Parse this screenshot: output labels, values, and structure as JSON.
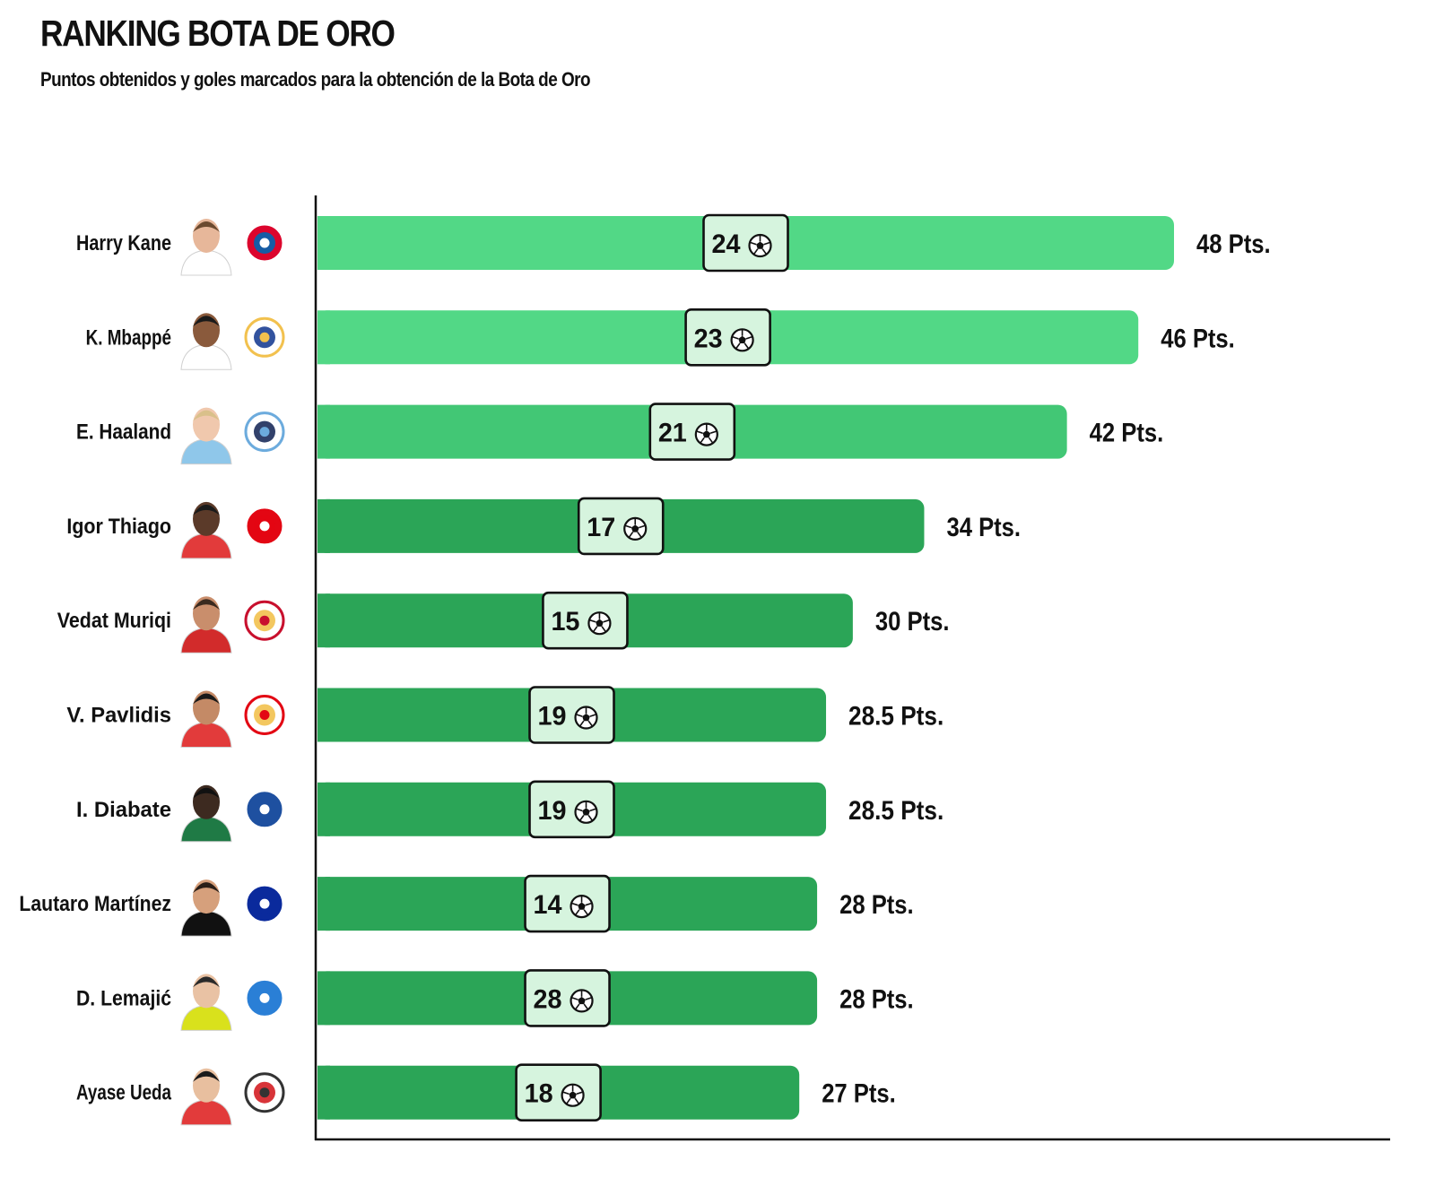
{
  "header": {
    "title": "RANKING BOTA DE ORO",
    "subtitle": "Puntos obtenidos y goles marcados para la obtención de la Bota de Oro"
  },
  "chart_data": {
    "type": "bar",
    "orientation": "horizontal",
    "title": "RANKING BOTA DE ORO",
    "subtitle": "Puntos obtenidos y goles marcados para la obtención de la Bota de Oro",
    "xlim": [
      0,
      48
    ],
    "points_suffix": " Pts.",
    "colors": {
      "high": "#52d886",
      "mid": "#42c775",
      "low": "#2ba557",
      "badge_bg": "#d6f4de",
      "axis": "#111111"
    },
    "players": [
      {
        "name": "Harry Kane",
        "club_icon": "bayern-munich-crest",
        "goals": 24,
        "points": 48,
        "points_label": "48 Pts.",
        "tier": "high"
      },
      {
        "name": "K. Mbappé",
        "club_icon": "real-madrid-crest",
        "goals": 23,
        "points": 46,
        "points_label": "46 Pts.",
        "tier": "high"
      },
      {
        "name": "E. Haaland",
        "club_icon": "manchester-city-crest",
        "goals": 21,
        "points": 42,
        "points_label": "42 Pts.",
        "tier": "mid"
      },
      {
        "name": "Igor Thiago",
        "club_icon": "brentford-crest",
        "goals": 17,
        "points": 34,
        "points_label": "34 Pts.",
        "tier": "low"
      },
      {
        "name": "Vedat Muriqi",
        "club_icon": "mallorca-crest",
        "goals": 15,
        "points": 30,
        "points_label": "30 Pts.",
        "tier": "low"
      },
      {
        "name": "V. Pavlidis",
        "club_icon": "benfica-crest",
        "goals": 19,
        "points": 28.5,
        "points_label": "28.5 Pts.",
        "tier": "low"
      },
      {
        "name": "I. Diabate",
        "club_icon": "alaves-crest",
        "goals": 19,
        "points": 28.5,
        "points_label": "28.5 Pts.",
        "tier": "low"
      },
      {
        "name": "Lautaro Martínez",
        "club_icon": "inter-crest",
        "goals": 14,
        "points": 28,
        "points_label": "28 Pts.",
        "tier": "low"
      },
      {
        "name": "D. Lemajić",
        "club_icon": "rfs-crest",
        "goals": 28,
        "points": 28,
        "points_label": "28 Pts.",
        "tier": "low"
      },
      {
        "name": "Ayase Ueda",
        "club_icon": "feyenoord-crest",
        "goals": 18,
        "points": 27,
        "points_label": "27 Pts.",
        "tier": "low"
      }
    ]
  }
}
